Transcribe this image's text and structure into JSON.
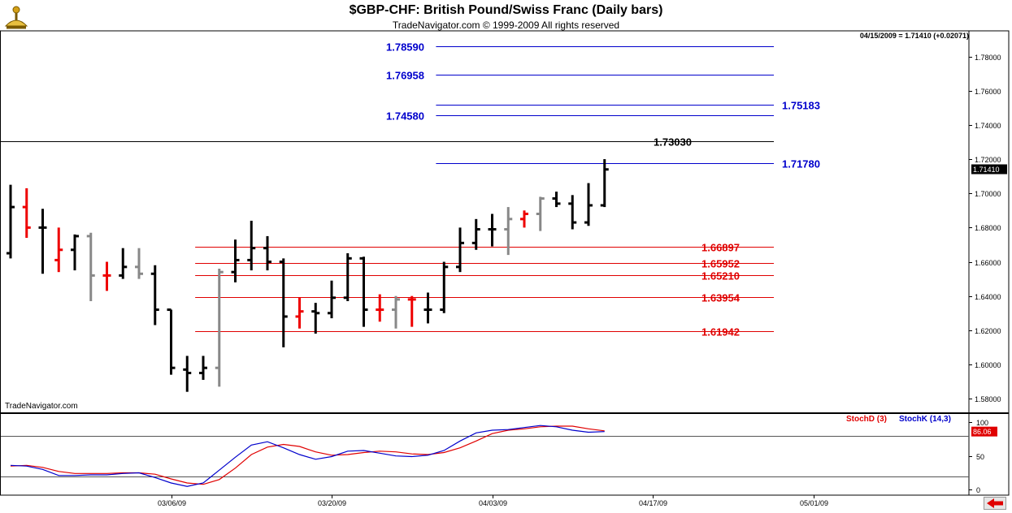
{
  "header": {
    "title": "$GBP-CHF:  British Pound/Swiss Franc  (Daily bars)",
    "subtitle": "TradeNavigator.com © 1999-2009 All rights reserved",
    "readout": "04/15/2009 = 1.71410 (+0.02071)",
    "watermark": "TradeNavigator.com"
  },
  "colors": {
    "blue_level": "#0000cc",
    "red_level": "#e00000",
    "black_level": "#000000",
    "bar_black": "#000000",
    "bar_red": "#ee0000",
    "bar_gray": "#888888",
    "stoch_d": "#e00000",
    "stoch_k": "#0000cc"
  },
  "icons": {
    "logo": "sextant-logo-icon",
    "back": "left-arrow-icon"
  },
  "chart_data": [
    {
      "type": "ohlc",
      "title": "$GBP-CHF:  British Pound/Swiss Franc  (Daily bars)",
      "ylim": [
        1.572,
        1.795
      ],
      "y_ticks": [
        1.58,
        1.6,
        1.62,
        1.64,
        1.66,
        1.68,
        1.7,
        1.72,
        1.74,
        1.76,
        1.78
      ],
      "y_tick_labels": [
        "1.58000",
        "1.60000",
        "1.62000",
        "1.64000",
        "1.66000",
        "1.68000",
        "1.70000",
        "1.72000",
        "1.74000",
        "1.76000",
        "1.78000"
      ],
      "x_labels": [
        {
          "label": "03/06/09",
          "index": 10
        },
        {
          "label": "03/20/09",
          "index": 20
        },
        {
          "label": "04/03/09",
          "index": 30
        },
        {
          "label": "04/17/09",
          "index": 40
        },
        {
          "label": "05/01/09",
          "index": 50
        }
      ],
      "last_price": {
        "value": 1.7141,
        "label": "1.71410"
      },
      "bars": [
        {
          "o": 1.665,
          "h": 1.705,
          "l": 1.662,
          "c": 1.692,
          "color": "black"
        },
        {
          "o": 1.692,
          "h": 1.703,
          "l": 1.674,
          "c": 1.68,
          "color": "red"
        },
        {
          "o": 1.68,
          "h": 1.691,
          "l": 1.653,
          "c": 1.68,
          "color": "black"
        },
        {
          "o": 1.661,
          "h": 1.68,
          "l": 1.654,
          "c": 1.667,
          "color": "red"
        },
        {
          "o": 1.667,
          "h": 1.676,
          "l": 1.655,
          "c": 1.675,
          "color": "black"
        },
        {
          "o": 1.675,
          "h": 1.677,
          "l": 1.637,
          "c": 1.652,
          "color": "gray"
        },
        {
          "o": 1.652,
          "h": 1.66,
          "l": 1.643,
          "c": 1.652,
          "color": "red"
        },
        {
          "o": 1.652,
          "h": 1.668,
          "l": 1.65,
          "c": 1.657,
          "color": "black"
        },
        {
          "o": 1.657,
          "h": 1.668,
          "l": 1.65,
          "c": 1.653,
          "color": "gray"
        },
        {
          "o": 1.653,
          "h": 1.658,
          "l": 1.623,
          "c": 1.632,
          "color": "black"
        },
        {
          "o": 1.632,
          "h": 1.632,
          "l": 1.594,
          "c": 1.598,
          "color": "black"
        },
        {
          "o": 1.597,
          "h": 1.605,
          "l": 1.584,
          "c": 1.595,
          "color": "black"
        },
        {
          "o": 1.595,
          "h": 1.605,
          "l": 1.591,
          "c": 1.598,
          "color": "black"
        },
        {
          "o": 1.598,
          "h": 1.656,
          "l": 1.587,
          "c": 1.654,
          "color": "gray"
        },
        {
          "o": 1.654,
          "h": 1.673,
          "l": 1.648,
          "c": 1.661,
          "color": "black"
        },
        {
          "o": 1.661,
          "h": 1.684,
          "l": 1.655,
          "c": 1.668,
          "color": "black"
        },
        {
          "o": 1.668,
          "h": 1.675,
          "l": 1.655,
          "c": 1.66,
          "color": "black"
        },
        {
          "o": 1.66,
          "h": 1.662,
          "l": 1.61,
          "c": 1.628,
          "color": "black"
        },
        {
          "o": 1.628,
          "h": 1.639,
          "l": 1.621,
          "c": 1.631,
          "color": "red"
        },
        {
          "o": 1.631,
          "h": 1.636,
          "l": 1.618,
          "c": 1.63,
          "color": "black"
        },
        {
          "o": 1.63,
          "h": 1.649,
          "l": 1.627,
          "c": 1.639,
          "color": "black"
        },
        {
          "o": 1.639,
          "h": 1.665,
          "l": 1.637,
          "c": 1.662,
          "color": "black"
        },
        {
          "o": 1.662,
          "h": 1.663,
          "l": 1.622,
          "c": 1.632,
          "color": "black"
        },
        {
          "o": 1.632,
          "h": 1.641,
          "l": 1.625,
          "c": 1.632,
          "color": "red"
        },
        {
          "o": 1.632,
          "h": 1.64,
          "l": 1.621,
          "c": 1.638,
          "color": "gray"
        },
        {
          "o": 1.638,
          "h": 1.64,
          "l": 1.622,
          "c": 1.638,
          "color": "red"
        },
        {
          "o": 1.632,
          "h": 1.642,
          "l": 1.624,
          "c": 1.632,
          "color": "black"
        },
        {
          "o": 1.632,
          "h": 1.66,
          "l": 1.63,
          "c": 1.657,
          "color": "black"
        },
        {
          "o": 1.657,
          "h": 1.68,
          "l": 1.654,
          "c": 1.671,
          "color": "black"
        },
        {
          "o": 1.671,
          "h": 1.685,
          "l": 1.667,
          "c": 1.679,
          "color": "black"
        },
        {
          "o": 1.679,
          "h": 1.688,
          "l": 1.669,
          "c": 1.679,
          "color": "black"
        },
        {
          "o": 1.679,
          "h": 1.692,
          "l": 1.664,
          "c": 1.685,
          "color": "gray"
        },
        {
          "o": 1.685,
          "h": 1.69,
          "l": 1.68,
          "c": 1.688,
          "color": "red"
        },
        {
          "o": 1.688,
          "h": 1.698,
          "l": 1.678,
          "c": 1.697,
          "color": "gray"
        },
        {
          "o": 1.697,
          "h": 1.701,
          "l": 1.692,
          "c": 1.694,
          "color": "black"
        },
        {
          "o": 1.694,
          "h": 1.699,
          "l": 1.679,
          "c": 1.683,
          "color": "black"
        },
        {
          "o": 1.683,
          "h": 1.706,
          "l": 1.681,
          "c": 1.693,
          "color": "black"
        },
        {
          "o": 1.693,
          "h": 1.72,
          "l": 1.692,
          "c": 1.714,
          "color": "black"
        }
      ],
      "levels": [
        {
          "value": 1.7859,
          "label": "1.78590",
          "color": "blue",
          "label_side": "left",
          "line_from": 26.5
        },
        {
          "value": 1.76958,
          "label": "1.76958",
          "color": "blue",
          "label_side": "left",
          "line_from": 26.5
        },
        {
          "value": 1.75183,
          "label": "1.75183",
          "color": "blue",
          "label_side": "right",
          "line_from": 26.5
        },
        {
          "value": 1.7458,
          "label": "1.74580",
          "color": "blue",
          "label_side": "left",
          "line_from": 26.5
        },
        {
          "value": 1.7303,
          "label": "1.73030",
          "color": "black",
          "label_side": "right",
          "line_from": -0.5
        },
        {
          "value": 1.7178,
          "label": "1.71780",
          "color": "blue",
          "label_side": "right",
          "line_from": 26.5
        },
        {
          "value": 1.66897,
          "label": "1.66897",
          "color": "red",
          "label_side": "right",
          "line_from": 11.5
        },
        {
          "value": 1.65952,
          "label": "1.65952",
          "color": "red",
          "label_side": "right",
          "line_from": 11.5
        },
        {
          "value": 1.6521,
          "label": "1.65210",
          "color": "red",
          "label_side": "right",
          "line_from": 11.5
        },
        {
          "value": 1.63954,
          "label": "1.63954",
          "color": "red",
          "label_side": "right",
          "line_from": 11.5
        },
        {
          "value": 1.61942,
          "label": "1.61942",
          "color": "red",
          "label_side": "right",
          "line_from": 11.5
        }
      ]
    },
    {
      "type": "line",
      "title": "",
      "ylim": [
        -8,
        112
      ],
      "y_ticks": [
        0,
        50,
        100
      ],
      "y_tick_labels": [
        "0",
        "50",
        "100"
      ],
      "ref_lines": [
        20,
        80
      ],
      "last_value_label": "86.06",
      "series": [
        {
          "name": "StochD (3)",
          "color": "red",
          "values": [
            35,
            36,
            33,
            27,
            24,
            24,
            24,
            25,
            25,
            23,
            16,
            10,
            8,
            15,
            32,
            52,
            63,
            67,
            64,
            56,
            51,
            52,
            55,
            57,
            56,
            53,
            52,
            55,
            62,
            72,
            83,
            88,
            90,
            93,
            94,
            94,
            90,
            87
          ]
        },
        {
          "name": "StochK (14,3)",
          "color": "blue",
          "values": [
            36,
            35,
            30,
            21,
            21,
            22,
            22,
            24,
            25,
            18,
            10,
            5,
            10,
            29,
            48,
            66,
            71,
            62,
            52,
            45,
            49,
            57,
            58,
            54,
            50,
            49,
            51,
            58,
            72,
            84,
            88,
            89,
            92,
            95,
            93,
            88,
            85,
            86
          ]
        }
      ]
    }
  ]
}
